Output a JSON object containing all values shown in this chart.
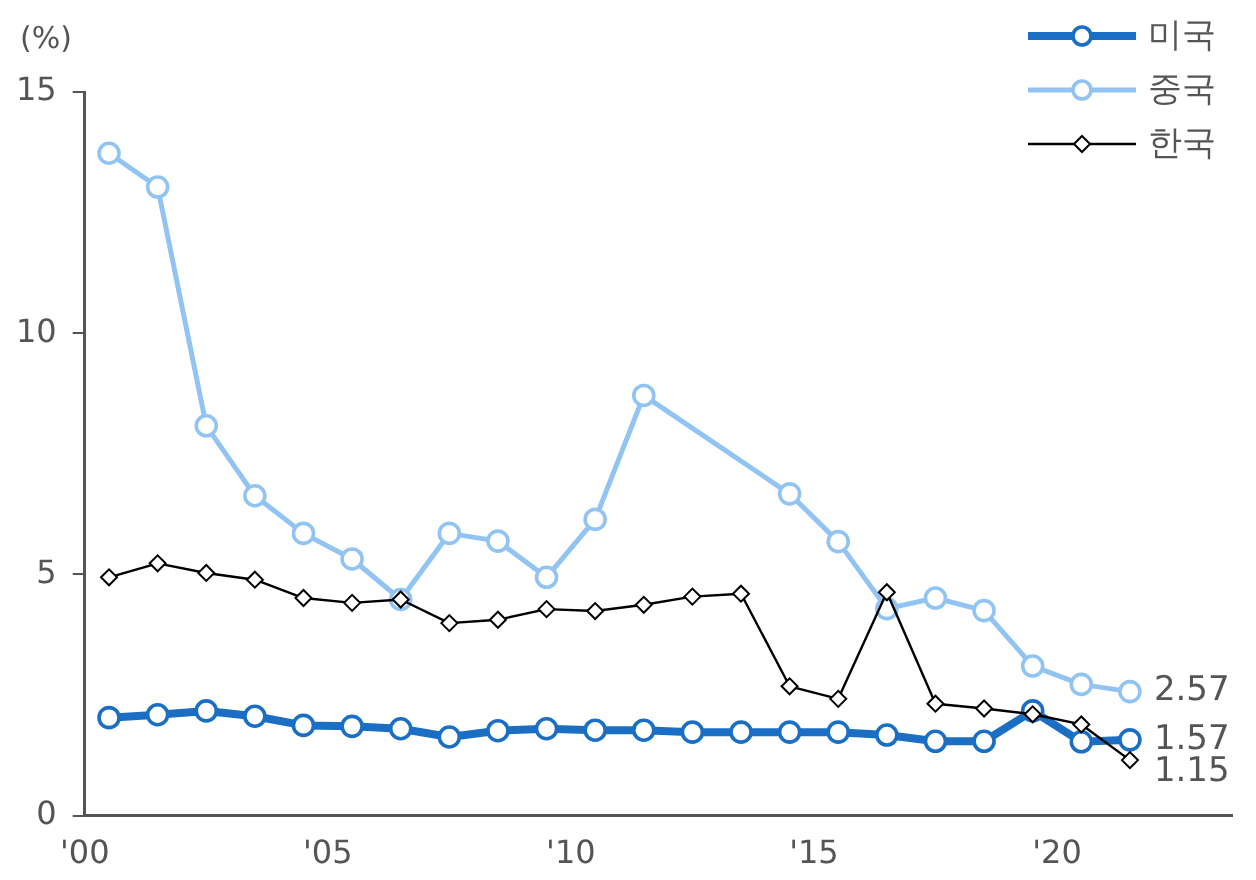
{
  "chart_data": {
    "type": "line",
    "ylabel": "(%)",
    "xlim": [
      2000,
      2023.6
    ],
    "xticks": [
      {
        "value": 2000,
        "label": "'00"
      },
      {
        "value": 2005,
        "label": "'05"
      },
      {
        "value": 2010,
        "label": "'10"
      },
      {
        "value": 2015,
        "label": "'15"
      },
      {
        "value": 2020,
        "label": "'20"
      }
    ],
    "ylim": [
      0,
      15
    ],
    "yticks": [
      0,
      5,
      10,
      15
    ],
    "grid": false,
    "legend": "top right",
    "x": [
      2000.5,
      2001.5,
      2002.5,
      2003.5,
      2004.5,
      2005.5,
      2006.5,
      2007.5,
      2008.5,
      2009.5,
      2010.5,
      2011.5,
      2012.5,
      2013.5,
      2014.5,
      2015.5,
      2016.5,
      2017.5,
      2018.5,
      2019.5,
      2020.5,
      2021.5
    ],
    "series": [
      {
        "name": "미국",
        "color": "#1a6fc4",
        "marker": "circle",
        "values": [
          2.03,
          2.09,
          2.17,
          2.06,
          1.87,
          1.85,
          1.8,
          1.63,
          1.76,
          1.8,
          1.77,
          1.77,
          1.73,
          1.73,
          1.73,
          1.73,
          1.67,
          1.54,
          1.54,
          2.17,
          1.53,
          1.57
        ],
        "value_labels": [
          null,
          null,
          null,
          null,
          null,
          null,
          null,
          null,
          null,
          null,
          null,
          null,
          null,
          null,
          null,
          null,
          null,
          null,
          null,
          null,
          null,
          "1.57"
        ]
      },
      {
        "name": "중국",
        "color": "#91c4f2",
        "marker": "circle",
        "x": [
          2000.5,
          2001.5,
          2002.5,
          2003.5,
          2004.5,
          2005.5,
          2006.5,
          2007.5,
          2008.5,
          2009.5,
          2010.5,
          2011.5,
          2014.5,
          2015.5,
          2016.5,
          2017.5,
          2018.5,
          2019.5,
          2020.5,
          2021.5
        ],
        "values": [
          13.73,
          13.03,
          8.08,
          6.63,
          5.85,
          5.32,
          4.48,
          5.85,
          5.69,
          4.94,
          6.14,
          8.71,
          6.67,
          5.68,
          4.29,
          4.51,
          4.25,
          3.1,
          2.72,
          2.57
        ],
        "value_labels": [
          null,
          null,
          null,
          null,
          null,
          null,
          null,
          null,
          null,
          null,
          null,
          null,
          null,
          null,
          null,
          null,
          null,
          null,
          null,
          "2.57"
        ]
      },
      {
        "name": "한국",
        "color": "#000000",
        "marker": "diamond",
        "values": [
          4.94,
          5.23,
          5.03,
          4.89,
          4.51,
          4.41,
          4.48,
          3.99,
          4.06,
          4.28,
          4.24,
          4.37,
          4.54,
          4.6,
          2.68,
          2.42,
          4.63,
          2.32,
          2.22,
          2.1,
          1.89,
          1.15
        ],
        "value_labels": [
          null,
          null,
          null,
          null,
          null,
          null,
          null,
          null,
          null,
          null,
          null,
          null,
          null,
          null,
          null,
          null,
          null,
          null,
          null,
          null,
          null,
          "1.15"
        ]
      }
    ]
  }
}
